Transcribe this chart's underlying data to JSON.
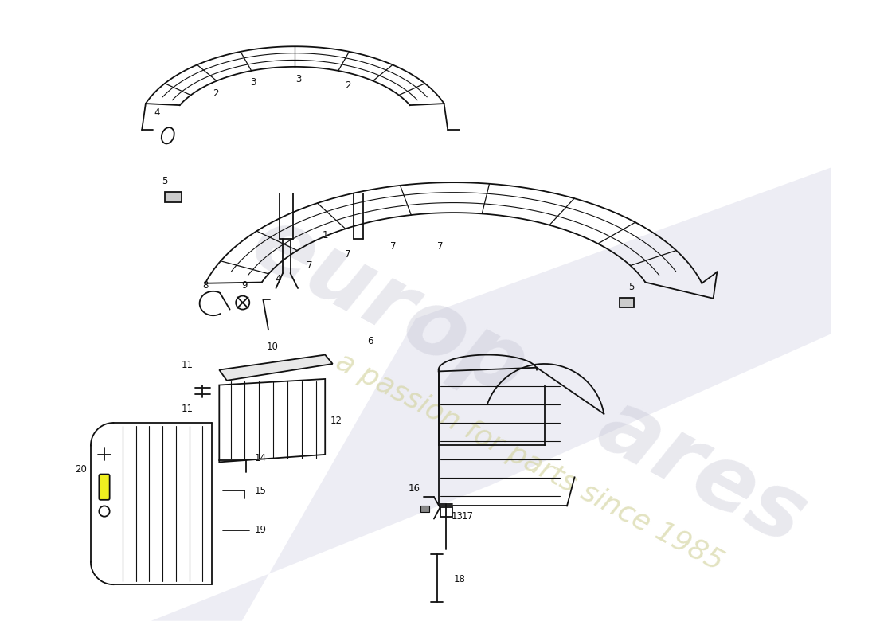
{
  "background_color": "#ffffff",
  "line_color": "#111111",
  "figsize": [
    11.0,
    8.0
  ],
  "dpi": 100
}
